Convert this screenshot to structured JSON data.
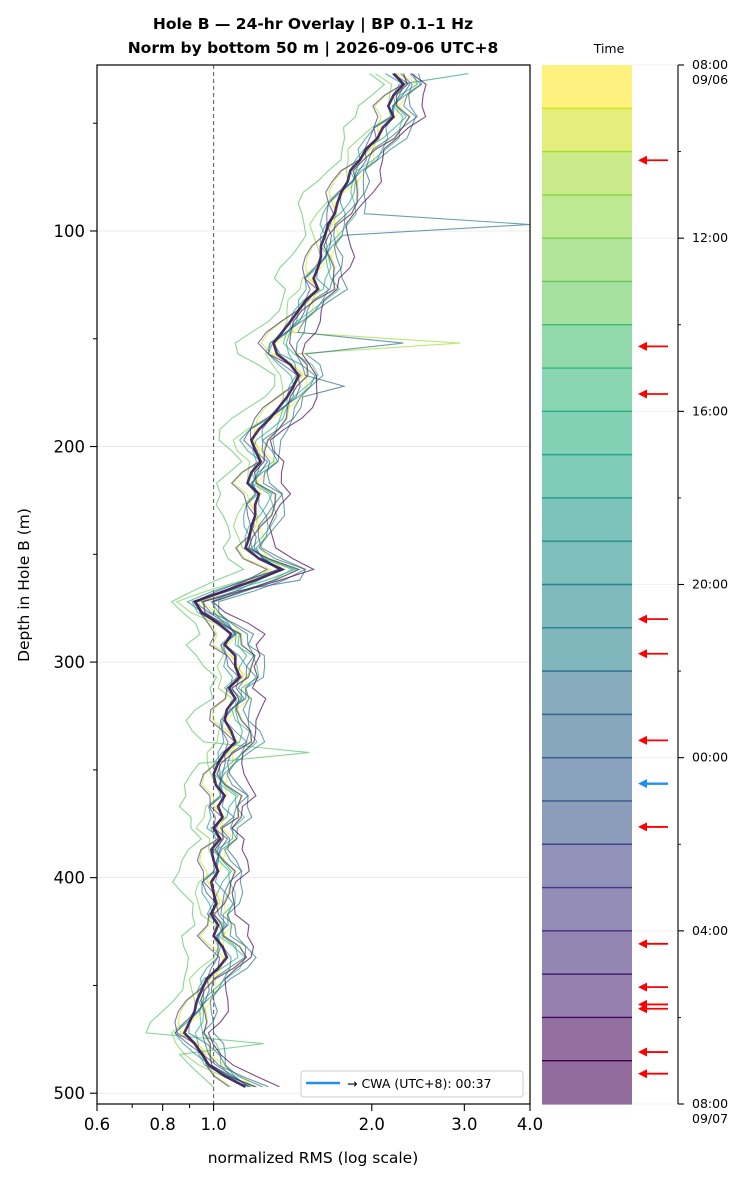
{
  "chart_data": {
    "type": "line",
    "title": "Hole B — 24-hr Overlay  |  BP 0.1–1 Hz",
    "subtitle": "Norm by bottom 50 m  |  2026-09-06 UTC+8",
    "xlabel": "normalized RMS  (log scale)",
    "ylabel": "Depth in Hole B (m)",
    "x_scale": "log",
    "xlim": [
      0.6,
      4.0
    ],
    "ylim": [
      505,
      23
    ],
    "x_ticks": [
      "0.6",
      "0.8",
      "1.0",
      "2.0",
      "3.0",
      "4.0"
    ],
    "y_ticks": [
      "100",
      "200",
      "300",
      "400",
      "500"
    ],
    "reference_line_x": 1.0,
    "legend": {
      "label": "→ CWA (UTC+8): 00:37",
      "color": "#1f8ff0",
      "placement": "lower-right"
    },
    "depth": [
      27,
      32,
      37,
      42,
      47,
      52,
      57,
      62,
      67,
      72,
      77,
      82,
      87,
      92,
      97,
      102,
      107,
      112,
      117,
      122,
      127,
      132,
      137,
      142,
      147,
      152,
      157,
      162,
      167,
      172,
      177,
      182,
      187,
      192,
      197,
      202,
      207,
      212,
      217,
      222,
      227,
      232,
      237,
      242,
      247,
      252,
      257,
      262,
      267,
      272,
      277,
      282,
      287,
      292,
      297,
      302,
      307,
      312,
      317,
      322,
      327,
      332,
      337,
      342,
      347,
      352,
      357,
      362,
      367,
      372,
      377,
      382,
      387,
      392,
      397,
      402,
      407,
      412,
      417,
      422,
      427,
      432,
      437,
      442,
      447,
      452,
      457,
      462,
      467,
      472,
      477,
      482,
      487,
      492,
      497
    ],
    "mean_profile": [
      2.2,
      2.3,
      2.2,
      2.15,
      2.2,
      2.1,
      2.05,
      1.95,
      1.9,
      1.82,
      1.8,
      1.75,
      1.72,
      1.7,
      1.65,
      1.63,
      1.6,
      1.6,
      1.58,
      1.55,
      1.58,
      1.5,
      1.45,
      1.4,
      1.35,
      1.3,
      1.32,
      1.4,
      1.45,
      1.42,
      1.38,
      1.33,
      1.28,
      1.22,
      1.18,
      1.2,
      1.23,
      1.18,
      1.16,
      1.22,
      1.2,
      1.2,
      1.18,
      1.17,
      1.15,
      1.22,
      1.35,
      1.2,
      1.05,
      0.92,
      0.95,
      1.02,
      1.08,
      1.05,
      1.1,
      1.1,
      1.12,
      1.07,
      1.1,
      1.06,
      1.05,
      1.08,
      1.1,
      1.05,
      1.02,
      1.0,
      1.01,
      1.05,
      1.02,
      1.04,
      1.0,
      1.03,
      0.99,
      1.0,
      1.02,
      0.99,
      1.0,
      1.01,
      0.99,
      1.02,
      1.0,
      1.04,
      1.06,
      1.02,
      0.97,
      0.95,
      0.93,
      0.92,
      0.9,
      0.88,
      0.92,
      0.95,
      0.98,
      1.05,
      1.15
    ],
    "series": [
      {
        "time": "08:00",
        "color": "#fde725",
        "deviation": 0.03,
        "spikes": []
      },
      {
        "time": "09:00",
        "color": "#d2e21b",
        "deviation": -0.02,
        "spikes": []
      },
      {
        "time": "10:00",
        "color": "#a5db36",
        "deviation": 0.05,
        "spikes": [
          [
            152,
            1.1
          ]
        ]
      },
      {
        "time": "11:00",
        "color": "#7ad151",
        "deviation": -0.04,
        "spikes": []
      },
      {
        "time": "12:00",
        "color": "#54c568",
        "deviation": -0.12,
        "spikes": [
          [
            342,
            0.6
          ],
          [
            477,
            0.55
          ]
        ]
      },
      {
        "time": "13:00",
        "color": "#35b779",
        "deviation": 0.06,
        "spikes": []
      },
      {
        "time": "14:00",
        "color": "#22a884",
        "deviation": 0.02,
        "spikes": [
          [
            27,
            0.4
          ]
        ]
      },
      {
        "time": "15:00",
        "color": "#1f988b",
        "deviation": -0.01,
        "spikes": []
      },
      {
        "time": "16:00",
        "color": "#23888e",
        "deviation": 0.04,
        "spikes": []
      },
      {
        "time": "17:00",
        "color": "#2a788e",
        "deviation": 0.1,
        "spikes": [
          [
            97,
            1.6
          ],
          [
            152,
            0.6
          ]
        ]
      },
      {
        "time": "18:00",
        "color": "#31688e",
        "deviation": 0.07,
        "spikes": [
          [
            172,
            0.2
          ],
          [
            262,
            0.12
          ]
        ]
      },
      {
        "time": "19:00",
        "color": "#3b528b",
        "deviation": 0.0,
        "spikes": []
      },
      {
        "time": "20:00",
        "color": "#443983",
        "deviation": -0.03,
        "spikes": []
      },
      {
        "time": "21:00",
        "color": "#482475",
        "deviation": 0.05,
        "spikes": []
      },
      {
        "time": "22:00",
        "color": "#440154",
        "deviation": 0.12,
        "spikes": []
      }
    ],
    "colorbar": {
      "title": "Time",
      "tick_labels": [
        "08:00",
        "09/06",
        "12:00",
        "16:00",
        "20:00",
        "00:00",
        "04:00",
        "08:00",
        "09/07"
      ],
      "colors": [
        "#fde725",
        "#d2e21b",
        "#bade28",
        "#a5db36",
        "#8fd744",
        "#7ad151",
        "#65cb5e",
        "#54c568",
        "#44bf70",
        "#35b779",
        "#2ab07f",
        "#22a884",
        "#1fa088",
        "#1f988b",
        "#21918c",
        "#23888e",
        "#26818e",
        "#2a788e",
        "#2e6f8e",
        "#31688e",
        "#355f8d",
        "#39568c",
        "#3e4c8a",
        "#414487",
        "#453882",
        "#472d7b",
        "#482475",
        "#48186a",
        "#46085c",
        "#440154"
      ],
      "event_hours": [
        2.2,
        6.5,
        7.6,
        12.8,
        13.6,
        15.6,
        16.6,
        17.6,
        20.3,
        21.3,
        21.7,
        21.8,
        22.8,
        23.3
      ],
      "cwa_hour": 16.6,
      "event_color": "#ff0000",
      "cwa_color": "#1f8ff0"
    }
  }
}
